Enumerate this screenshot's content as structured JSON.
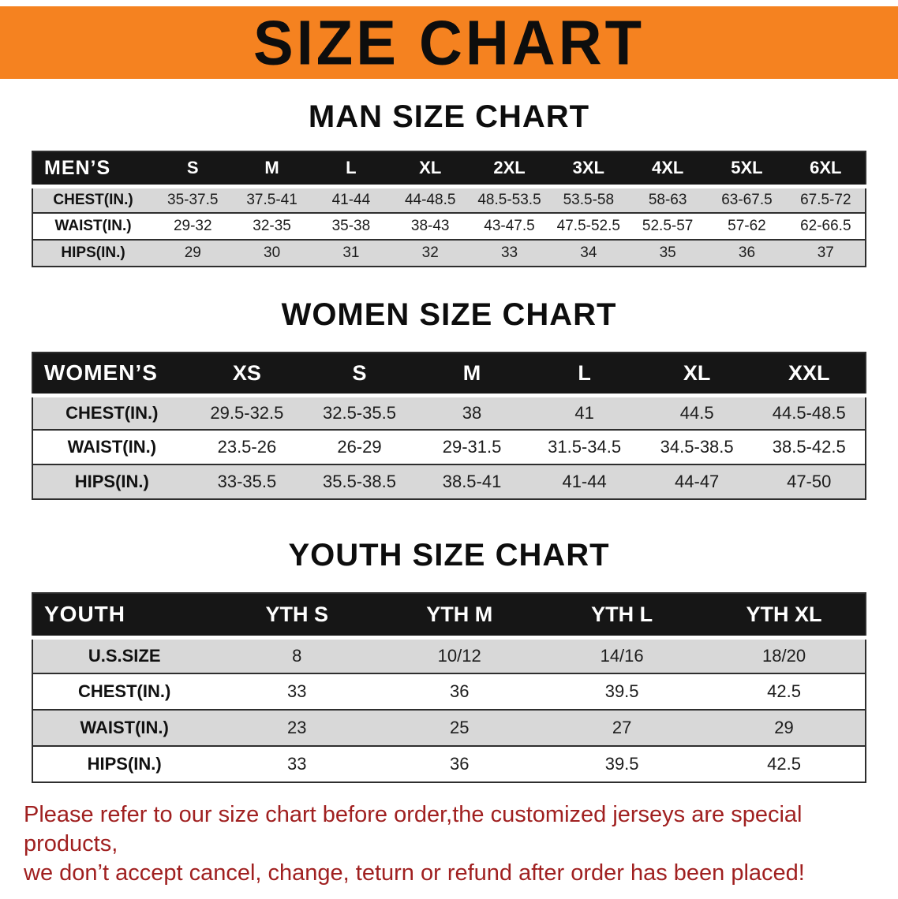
{
  "banner": {
    "title": "SIZE CHART"
  },
  "colors": {
    "banner-bg": "#F58220",
    "header-bg": "#161616",
    "row-alt": "#d8d8d8",
    "line": "#2e2e2e",
    "disclaimer": "#A02020"
  },
  "sections": [
    {
      "key": "men",
      "heading": "MAN SIZE CHART",
      "table": {
        "header": [
          "MEN’S",
          "S",
          "M",
          "L",
          "XL",
          "2XL",
          "3XL",
          "4XL",
          "5XL",
          "6XL"
        ],
        "rows": [
          {
            "label": "CHEST(IN.)",
            "values": [
              "35-37.5",
              "37.5-41",
              "41-44",
              "44-48.5",
              "48.5-53.5",
              "53.5-58",
              "58-63",
              "63-67.5",
              "67.5-72"
            ]
          },
          {
            "label": "WAIST(IN.)",
            "values": [
              "29-32",
              "32-35",
              "35-38",
              "38-43",
              "43-47.5",
              "47.5-52.5",
              "52.5-57",
              "57-62",
              "62-66.5"
            ]
          },
          {
            "label": "HIPS(IN.)",
            "values": [
              "29",
              "30",
              "31",
              "32",
              "33",
              "34",
              "35",
              "36",
              "37"
            ]
          }
        ]
      }
    },
    {
      "key": "women",
      "heading": "WOMEN SIZE CHART",
      "table": {
        "header": [
          "WOMEN’S",
          "XS",
          "S",
          "M",
          "L",
          "XL",
          "XXL"
        ],
        "rows": [
          {
            "label": "CHEST(IN.)",
            "values": [
              "29.5-32.5",
              "32.5-35.5",
              "38",
              "41",
              "44.5",
              "44.5-48.5"
            ]
          },
          {
            "label": "WAIST(IN.)",
            "values": [
              "23.5-26",
              "26-29",
              "29-31.5",
              "31.5-34.5",
              "34.5-38.5",
              "38.5-42.5"
            ]
          },
          {
            "label": "HIPS(IN.)",
            "values": [
              "33-35.5",
              "35.5-38.5",
              "38.5-41",
              "41-44",
              "44-47",
              "47-50"
            ]
          }
        ]
      }
    },
    {
      "key": "youth",
      "heading": "YOUTH SIZE CHART",
      "table": {
        "header": [
          "YOUTH",
          "YTH S",
          "YTH M",
          "YTH L",
          "YTH XL"
        ],
        "rows": [
          {
            "label": "U.S.SIZE",
            "values": [
              "8",
              "10/12",
              "14/16",
              "18/20"
            ]
          },
          {
            "label": "CHEST(IN.)",
            "values": [
              "33",
              "36",
              "39.5",
              "42.5"
            ]
          },
          {
            "label": "WAIST(IN.)",
            "values": [
              "23",
              "25",
              "27",
              "29"
            ]
          },
          {
            "label": "HIPS(IN.)",
            "values": [
              "33",
              "36",
              "39.5",
              "42.5"
            ]
          }
        ]
      }
    }
  ],
  "disclaimer": {
    "lines": [
      "Please refer to our size chart before order,the customized jerseys are special products,",
      "we don’t accept cancel, change, teturn or refund after order has been placed!"
    ]
  }
}
